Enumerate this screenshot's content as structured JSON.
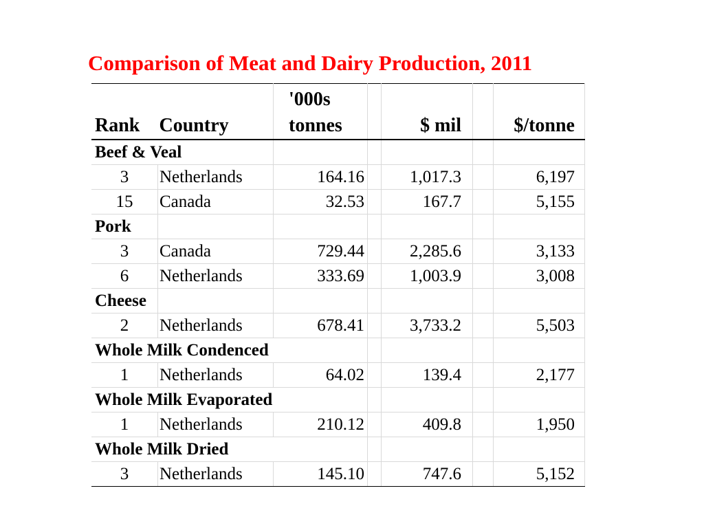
{
  "title": "Comparison of Meat and Dairy Production, 2011",
  "headers": {
    "rank": "Rank",
    "country": "Country",
    "tonnes_line1": "'000s",
    "tonnes_line2": "tonnes",
    "mil": "$ mil",
    "per_tonne": "$/tonne"
  },
  "sections": [
    {
      "category": "Beef & Veal",
      "rows": [
        {
          "rank": "3",
          "country": "Netherlands",
          "tonnes": "164.16",
          "mil": "1,017.3",
          "per_tonne": "6,197"
        },
        {
          "rank": "15",
          "country": "Canada",
          "tonnes": "32.53",
          "mil": "167.7",
          "per_tonne": "5,155"
        }
      ]
    },
    {
      "category": "Pork",
      "rows": [
        {
          "rank": "3",
          "country": "Canada",
          "tonnes": "729.44",
          "mil": "2,285.6",
          "per_tonne": "3,133"
        },
        {
          "rank": "6",
          "country": "Netherlands",
          "tonnes": "333.69",
          "mil": "1,003.9",
          "per_tonne": "3,008"
        }
      ]
    },
    {
      "category": "Cheese",
      "rows": [
        {
          "rank": "2",
          "country": "Netherlands",
          "tonnes": "678.41",
          "mil": "3,733.2",
          "per_tonne": "5,503"
        }
      ]
    },
    {
      "category": "Whole Milk Condenced",
      "rows": [
        {
          "rank": "1",
          "country": "Netherlands",
          "tonnes": "64.02",
          "mil": "139.4",
          "per_tonne": "2,177"
        }
      ]
    },
    {
      "category": "Whole Milk Evaporated",
      "rows": [
        {
          "rank": "1",
          "country": "Netherlands",
          "tonnes": "210.12",
          "mil": "409.8",
          "per_tonne": "1,950"
        }
      ]
    },
    {
      "category": "Whole Milk Dried",
      "rows": [
        {
          "rank": "3",
          "country": "Netherlands",
          "tonnes": "145.10",
          "mil": "747.6",
          "per_tonne": "5,152"
        }
      ]
    }
  ]
}
